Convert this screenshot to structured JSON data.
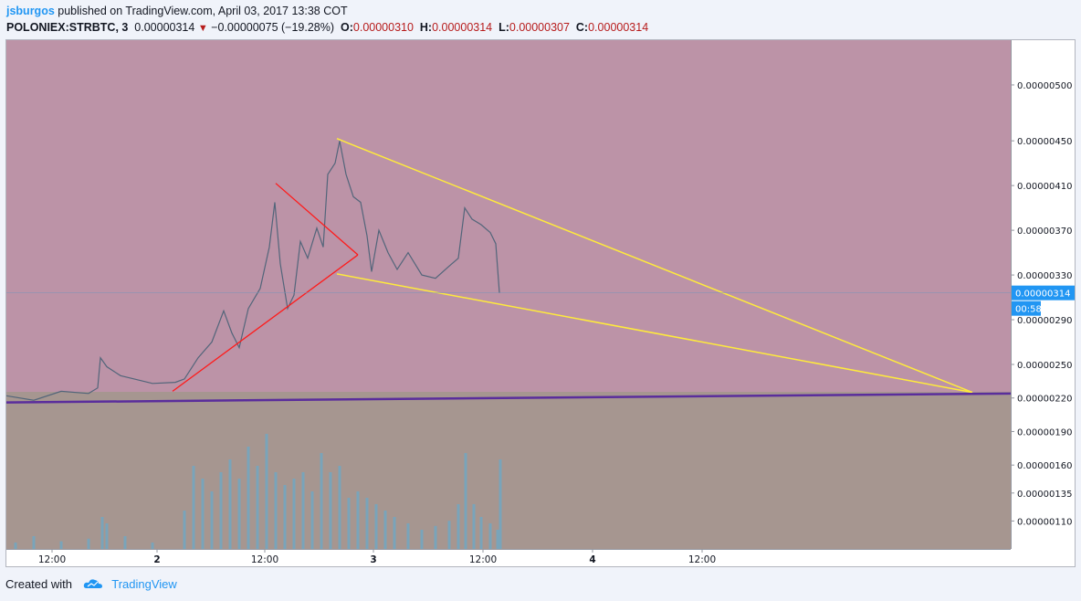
{
  "header": {
    "author": "jsburgos",
    "published_text": "published on TradingView.com, April 03, 2017 13:38 COT",
    "symbol": "POLONIEX:STRBTC, 3",
    "last_price": "0.00000314",
    "change_arrow": "▼",
    "change": "−0.00000075 (−19.28%)",
    "open_label": "O:",
    "open": "0.00000310",
    "high_label": "H:",
    "high": "0.00000314",
    "low_label": "L:",
    "low": "0.00000307",
    "close_label": "C:",
    "close": "0.00000314"
  },
  "footer": {
    "created_with": "Created with",
    "brand": "TradingView"
  },
  "colors": {
    "upper_bg": "#bc93a7",
    "lower_bg": "#a69690",
    "price_line": "#52657a",
    "volume": "#6aa8c8",
    "triangle": "#ff1a1a",
    "wedge": "#ffeb3b",
    "support": "#5a2d9c",
    "price_tag": "#2196f3"
  },
  "chart_data": {
    "type": "line",
    "title": "POLONIEX:STRBTC, 3",
    "x_labels": [
      "12:00",
      "2",
      "12:00",
      "3",
      "12:00",
      "4",
      "12:00"
    ],
    "y_ticks": [
      "0.00000500",
      "0.00000450",
      "0.00000410",
      "0.00000370",
      "0.00000330",
      "0.00000290",
      "0.00000250",
      "0.00000220",
      "0.00000190",
      "0.00000160",
      "0.00000135",
      "0.00000110"
    ],
    "ylim": [
      8.5e-07,
      5.4e-06
    ],
    "x_range": [
      0,
      1100
    ],
    "price_tag": "0.00000314",
    "time_tag": "00:58",
    "price_series": [
      [
        0,
        2.22e-06
      ],
      [
        30,
        2.18e-06
      ],
      [
        60,
        2.26e-06
      ],
      [
        90,
        2.24e-06
      ],
      [
        100,
        2.29e-06
      ],
      [
        103,
        2.56e-06
      ],
      [
        110,
        2.48e-06
      ],
      [
        125,
        2.4e-06
      ],
      [
        140,
        2.37e-06
      ],
      [
        160,
        2.33e-06
      ],
      [
        185,
        2.34e-06
      ],
      [
        195,
        2.37e-06
      ],
      [
        210,
        2.56e-06
      ],
      [
        225,
        2.7e-06
      ],
      [
        238,
        2.98e-06
      ],
      [
        247,
        2.78e-06
      ],
      [
        255,
        2.65e-06
      ],
      [
        265,
        3e-06
      ],
      [
        278,
        3.18e-06
      ],
      [
        288,
        3.55e-06
      ],
      [
        294,
        3.95e-06
      ],
      [
        300,
        3.4e-06
      ],
      [
        308,
        3e-06
      ],
      [
        315,
        3.12e-06
      ],
      [
        322,
        3.6e-06
      ],
      [
        330,
        3.45e-06
      ],
      [
        340,
        3.72e-06
      ],
      [
        347,
        3.55e-06
      ],
      [
        352,
        4.2e-06
      ],
      [
        360,
        4.3e-06
      ],
      [
        365,
        4.5e-06
      ],
      [
        372,
        4.2e-06
      ],
      [
        380,
        4e-06
      ],
      [
        388,
        3.95e-06
      ],
      [
        395,
        3.65e-06
      ],
      [
        400,
        3.33e-06
      ],
      [
        408,
        3.7e-06
      ],
      [
        418,
        3.5e-06
      ],
      [
        428,
        3.35e-06
      ],
      [
        440,
        3.5e-06
      ],
      [
        455,
        3.3e-06
      ],
      [
        470,
        3.27e-06
      ],
      [
        485,
        3.38e-06
      ],
      [
        495,
        3.45e-06
      ],
      [
        502,
        3.9e-06
      ],
      [
        510,
        3.8e-06
      ],
      [
        520,
        3.75e-06
      ],
      [
        530,
        3.68e-06
      ],
      [
        536,
        3.58e-06
      ],
      [
        540,
        3.14e-06
      ]
    ],
    "volume_series": [
      [
        10,
        0.05
      ],
      [
        30,
        0.1
      ],
      [
        60,
        0.06
      ],
      [
        90,
        0.08
      ],
      [
        105,
        0.25
      ],
      [
        110,
        0.2
      ],
      [
        130,
        0.1
      ],
      [
        160,
        0.05
      ],
      [
        195,
        0.3
      ],
      [
        205,
        0.65
      ],
      [
        215,
        0.55
      ],
      [
        225,
        0.45
      ],
      [
        235,
        0.6
      ],
      [
        245,
        0.7
      ],
      [
        255,
        0.55
      ],
      [
        265,
        0.8
      ],
      [
        275,
        0.65
      ],
      [
        285,
        0.9
      ],
      [
        295,
        0.6
      ],
      [
        305,
        0.5
      ],
      [
        315,
        0.55
      ],
      [
        325,
        0.6
      ],
      [
        335,
        0.45
      ],
      [
        345,
        0.75
      ],
      [
        355,
        0.6
      ],
      [
        365,
        0.65
      ],
      [
        375,
        0.4
      ],
      [
        385,
        0.45
      ],
      [
        395,
        0.4
      ],
      [
        405,
        0.35
      ],
      [
        415,
        0.3
      ],
      [
        425,
        0.25
      ],
      [
        440,
        0.2
      ],
      [
        455,
        0.15
      ],
      [
        470,
        0.18
      ],
      [
        485,
        0.22
      ],
      [
        495,
        0.35
      ],
      [
        503,
        0.75
      ],
      [
        512,
        0.35
      ],
      [
        520,
        0.25
      ],
      [
        530,
        0.2
      ],
      [
        538,
        0.15
      ],
      [
        541,
        0.7
      ]
    ],
    "drawings": [
      {
        "name": "triangle-upper",
        "points": [
          [
            295,
            4.12e-06
          ],
          [
            385,
            3.48e-06
          ]
        ]
      },
      {
        "name": "triangle-lower",
        "points": [
          [
            182,
            2.26e-06
          ],
          [
            385,
            3.48e-06
          ]
        ]
      },
      {
        "name": "wedge-upper",
        "points": [
          [
            362,
            4.52e-06
          ],
          [
            1058,
            2.25e-06
          ]
        ]
      },
      {
        "name": "wedge-lower",
        "points": [
          [
            362,
            3.31e-06
          ],
          [
            1058,
            2.25e-06
          ]
        ]
      },
      {
        "name": "support-line",
        "points": [
          [
            0,
            2.16e-06
          ],
          [
            1100,
            2.24e-06
          ]
        ]
      }
    ]
  }
}
